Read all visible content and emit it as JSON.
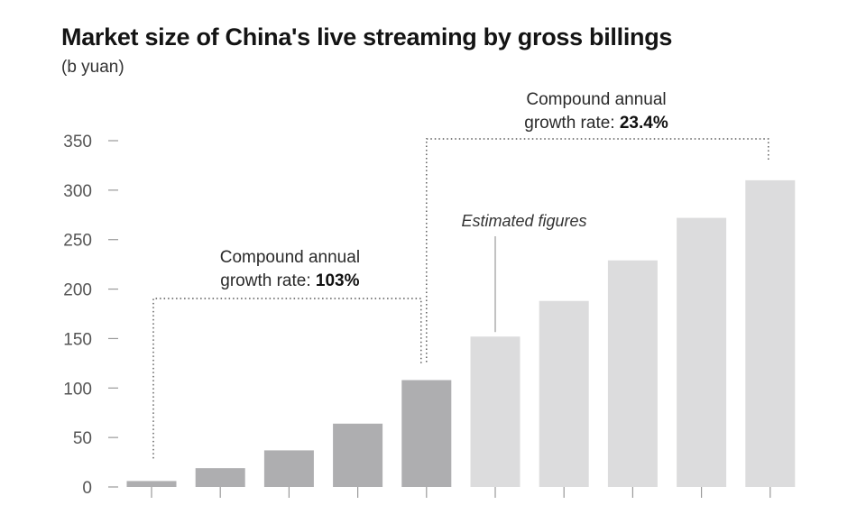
{
  "title": "Market size of China's live streaming by gross billings",
  "subtitle": "(b yuan)",
  "colors": {
    "actual_bar": "#aeaeb0",
    "estimated_bar": "#dcdcdd",
    "axis": "#9a9a9a",
    "annotation_line": "#555555"
  },
  "chart_data": {
    "type": "bar",
    "categories": [
      "",
      "",
      "",
      "",
      "",
      "",
      "",
      "",
      "",
      ""
    ],
    "values": [
      6,
      19,
      37,
      64,
      108,
      152,
      188,
      229,
      272,
      310
    ],
    "estimated_from_index": 5,
    "yticks": [
      0,
      50,
      100,
      150,
      200,
      250,
      300,
      350
    ],
    "ylim": [
      0,
      350
    ],
    "grid": false,
    "annotations": [
      {
        "line1": "Compound annual",
        "line2_prefix": "growth rate: ",
        "line2_value": "103%",
        "from_bar": 0,
        "to_bar": 4
      },
      {
        "line1": "Compound annual",
        "line2_prefix": "growth rate: ",
        "line2_value": "23.4%",
        "from_bar": 4,
        "to_bar": 9
      }
    ],
    "estimated_label": "Estimated figures"
  }
}
